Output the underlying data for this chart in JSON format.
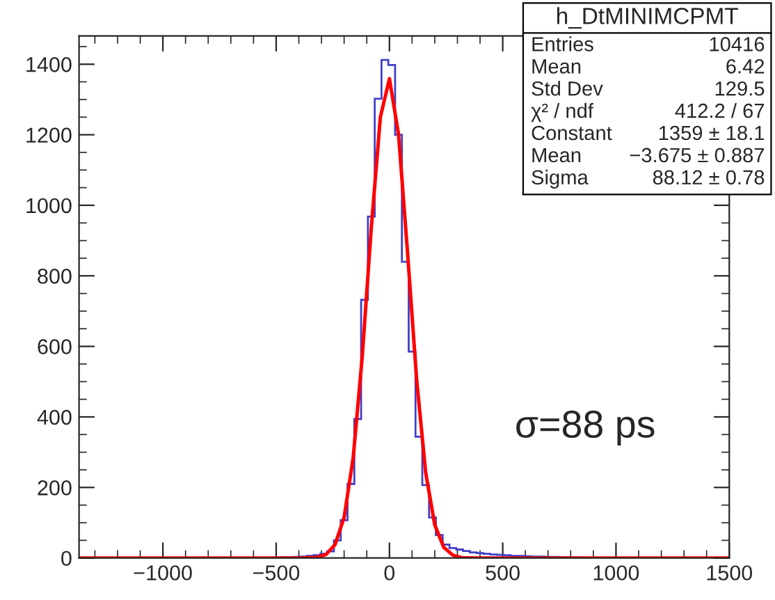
{
  "chart_data": {
    "type": "histogram",
    "bins": [
      -1355,
      -1325,
      -1295,
      -1265,
      -1235,
      -1205,
      -1175,
      -1145,
      -1115,
      -1085,
      -1055,
      -1025,
      -995,
      -965,
      -935,
      -905,
      -875,
      -845,
      -815,
      -785,
      -755,
      -725,
      -695,
      -665,
      -635,
      -605,
      -575,
      -545,
      -515,
      -485,
      -455,
      -425,
      -395,
      -365,
      -335,
      -305,
      -275,
      -245,
      -215,
      -185,
      -155,
      -125,
      -95,
      -65,
      -35,
      -5,
      25,
      55,
      85,
      115,
      145,
      175,
      205,
      235,
      265,
      295,
      325,
      355,
      385,
      415,
      445,
      475,
      505,
      535,
      565,
      595,
      625,
      655,
      685,
      715,
      745,
      775,
      805,
      835,
      865,
      895,
      925,
      955,
      985,
      1015,
      1045,
      1075,
      1105,
      1135,
      1165,
      1195,
      1225,
      1255,
      1285,
      1315,
      1345,
      1375,
      1405,
      1435,
      1465,
      1495
    ],
    "values": [
      0,
      0,
      0,
      0,
      0,
      0,
      0,
      0,
      0,
      0,
      0,
      0,
      0,
      0,
      0,
      0,
      0,
      0,
      0,
      0,
      0,
      0,
      0,
      0,
      0,
      0,
      0,
      0,
      1,
      2,
      2,
      3,
      4,
      6,
      8,
      12,
      19,
      50,
      107,
      210,
      394,
      732,
      968,
      1302,
      1412,
      1398,
      1200,
      840,
      585,
      344,
      207,
      115,
      65,
      38,
      28,
      24,
      20,
      16,
      14,
      12,
      10,
      9,
      8,
      6,
      6,
      5,
      4,
      4,
      3,
      3,
      2,
      2,
      1,
      1,
      0,
      0,
      0,
      0,
      0,
      0,
      0,
      0,
      0,
      0,
      0,
      0,
      0,
      0,
      0,
      0,
      0,
      0,
      0,
      0,
      0
    ],
    "color": "#4040c8",
    "series": [
      {
        "type": "line",
        "color": "#ff0000",
        "x": [
          -1370,
          -400,
          -320,
          -280,
          -240,
          -200,
          -160,
          -120,
          -80,
          -40,
          0,
          40,
          80,
          120,
          160,
          200,
          240,
          280,
          320,
          400,
          1500
        ],
        "values": [
          0,
          0,
          2,
          10,
          38,
          115,
          284,
          571,
          937,
          1250,
          1359,
          1202,
          866,
          507,
          242,
          94,
          30,
          8,
          1,
          0,
          0
        ]
      }
    ],
    "xlim": [
      -1370,
      1500
    ],
    "xticks": [
      {
        "value": -1000,
        "label": "−1000"
      },
      {
        "value": -500,
        "label": "−500"
      },
      0,
      500,
      1000,
      1500
    ],
    "ylim": [
      0,
      1480
    ],
    "yticks": [
      0,
      200,
      400,
      600,
      800,
      1000,
      1200,
      1400
    ],
    "grid": false,
    "annotations": [
      "h_DtMINIMCPMT",
      "Entries",
      "10416",
      "Mean",
      "6.42",
      "Std Dev",
      "129.5",
      "χ² / ndf",
      "412.2 / 67",
      "Constant",
      "1359 ± 18.1",
      "Mean",
      "−3.675 ± 0.887",
      "Sigma",
      "88.12 ± 0.78",
      "σ=88 ps"
    ]
  }
}
